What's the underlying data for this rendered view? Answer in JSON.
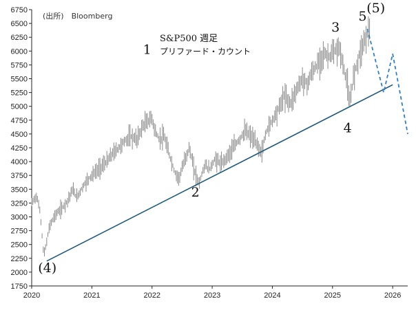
{
  "source": "(出所)　Bloomberg",
  "title_line1": "S&P500 週足",
  "title_line2": "プリファード・カウント",
  "colors": {
    "price": "#8a8a8a",
    "trendline": "#1f5a7a",
    "projection": "#2f7fc1",
    "axis": "#222222"
  },
  "chart_data": {
    "type": "line",
    "title": "S&P500 週足",
    "subtitle": "プリファード・カウント",
    "xlabel": "",
    "ylabel": "",
    "xlim": [
      2020.0,
      2026.25
    ],
    "ylim": [
      1750,
      6750
    ],
    "x_ticks": [
      2020,
      2021,
      2022,
      2023,
      2024,
      2025,
      2026
    ],
    "y_ticks": [
      1750,
      2000,
      2250,
      2500,
      2750,
      3000,
      3250,
      3500,
      3750,
      4000,
      4250,
      4500,
      4750,
      5000,
      5250,
      5500,
      5750,
      6000,
      6250,
      6500,
      6750
    ],
    "grid": false,
    "series": [
      {
        "name": "",
        "style": "weekly-bars",
        "points": [
          [
            2020.0,
            3250
          ],
          [
            2020.08,
            3380
          ],
          [
            2020.14,
            3100
          ],
          [
            2020.2,
            2300
          ],
          [
            2020.24,
            2490
          ],
          [
            2020.3,
            2850
          ],
          [
            2020.4,
            3050
          ],
          [
            2020.5,
            3150
          ],
          [
            2020.6,
            3300
          ],
          [
            2020.68,
            3500
          ],
          [
            2020.75,
            3350
          ],
          [
            2020.85,
            3550
          ],
          [
            2020.95,
            3700
          ],
          [
            2021.05,
            3800
          ],
          [
            2021.15,
            3900
          ],
          [
            2021.25,
            4000
          ],
          [
            2021.35,
            4150
          ],
          [
            2021.45,
            4250
          ],
          [
            2021.55,
            4380
          ],
          [
            2021.65,
            4450
          ],
          [
            2021.75,
            4400
          ],
          [
            2021.85,
            4650
          ],
          [
            2021.95,
            4750
          ],
          [
            2022.0,
            4780
          ],
          [
            2022.05,
            4550
          ],
          [
            2022.12,
            4400
          ],
          [
            2022.2,
            4450
          ],
          [
            2022.28,
            4150
          ],
          [
            2022.38,
            3800
          ],
          [
            2022.45,
            3700
          ],
          [
            2022.55,
            4050
          ],
          [
            2022.62,
            4250
          ],
          [
            2022.7,
            3850
          ],
          [
            2022.78,
            3600
          ],
          [
            2022.88,
            3950
          ],
          [
            2022.95,
            3850
          ],
          [
            2023.05,
            4050
          ],
          [
            2023.15,
            3950
          ],
          [
            2023.25,
            4100
          ],
          [
            2023.35,
            4250
          ],
          [
            2023.45,
            4400
          ],
          [
            2023.55,
            4550
          ],
          [
            2023.65,
            4450
          ],
          [
            2023.75,
            4300
          ],
          [
            2023.82,
            4150
          ],
          [
            2023.9,
            4550
          ],
          [
            2024.0,
            4750
          ],
          [
            2024.1,
            4950
          ],
          [
            2024.2,
            5200
          ],
          [
            2024.3,
            5050
          ],
          [
            2024.4,
            5300
          ],
          [
            2024.5,
            5500
          ],
          [
            2024.58,
            5400
          ],
          [
            2024.65,
            5600
          ],
          [
            2024.75,
            5750
          ],
          [
            2024.85,
            5950
          ],
          [
            2024.95,
            5900
          ],
          [
            2025.05,
            6000
          ],
          [
            2025.12,
            6050
          ],
          [
            2025.18,
            5700
          ],
          [
            2025.25,
            5400
          ],
          [
            2025.28,
            5000
          ],
          [
            2025.35,
            5550
          ],
          [
            2025.45,
            5950
          ],
          [
            2025.55,
            6250
          ],
          [
            2025.62,
            6400
          ]
        ]
      },
      {
        "name": "",
        "style": "trendline",
        "points": [
          [
            2020.25,
            2200
          ],
          [
            2026.0,
            5390
          ]
        ]
      },
      {
        "name": "",
        "style": "projection-dashed",
        "points": [
          [
            2025.58,
            6400
          ],
          [
            2025.85,
            5250
          ],
          [
            2026.0,
            5950
          ],
          [
            2026.25,
            4500
          ]
        ]
      }
    ],
    "annotations": [
      {
        "label": "(4)",
        "x": 2020.26,
        "y": 2000
      },
      {
        "label": "1",
        "x": 2021.92,
        "y": 5950
      },
      {
        "label": "2",
        "x": 2022.72,
        "y": 3370
      },
      {
        "label": "3",
        "x": 2025.05,
        "y": 6350
      },
      {
        "label": "4",
        "x": 2025.25,
        "y": 4530
      },
      {
        "label": "5",
        "x": 2025.5,
        "y": 6550
      },
      {
        "label": "(5)",
        "x": 2025.72,
        "y": 6700
      }
    ]
  }
}
